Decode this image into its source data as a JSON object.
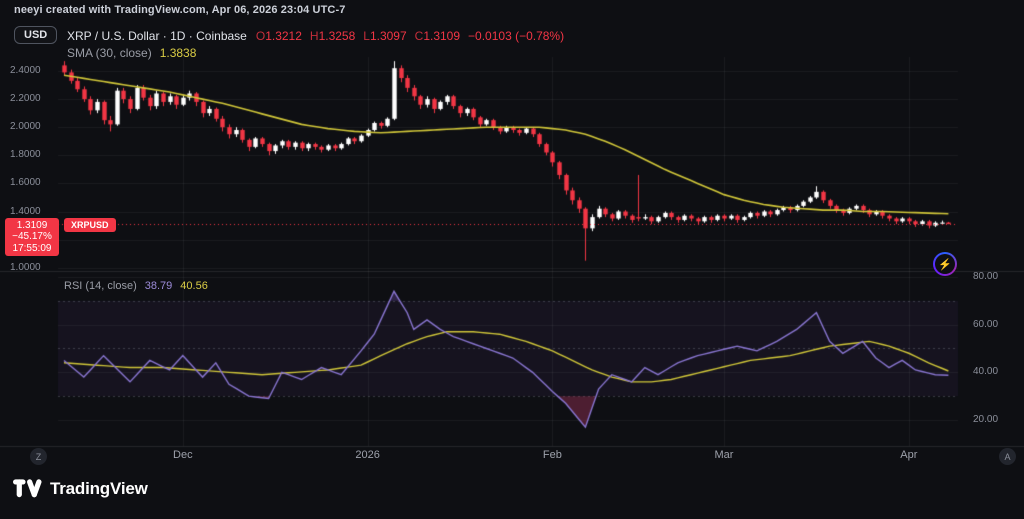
{
  "watermark": "neeyi created with TradingView.com, Apr 06, 2026 23:04 UTC-7",
  "toolbar": {
    "currency_button": "USD"
  },
  "legend": {
    "symbol_title": "XRP / U.S. Dollar · 1D · Coinbase",
    "o_label": "O",
    "o": "1.3212",
    "h_label": "H",
    "h": "1.3258",
    "l_label": "L",
    "l": "1.3097",
    "c_label": "C",
    "c": "1.3109",
    "change": "−0.0103 (−0.78%)",
    "sma_label": "SMA (30, close)",
    "sma_value": "1.3838"
  },
  "rsi_legend": {
    "label": "RSI (14, close)",
    "rsi_value": "38.79",
    "rsi_ma_value": "40.56"
  },
  "price_label": {
    "price": "1.3109",
    "change_pct": "−45.17%",
    "countdown": "17:55:09",
    "symbol_tag": "XRPUSD"
  },
  "axes": {
    "price_ticks": [
      {
        "v": 2.4,
        "label": "2.4000"
      },
      {
        "v": 2.2,
        "label": "2.2000"
      },
      {
        "v": 2.0,
        "label": "2.0000"
      },
      {
        "v": 1.8,
        "label": "1.8000"
      },
      {
        "v": 1.6,
        "label": "1.6000"
      },
      {
        "v": 1.4,
        "label": "1.4000"
      },
      {
        "v": 1.0,
        "label": "1.0000"
      }
    ],
    "rsi_ticks": [
      {
        "v": 80,
        "label": "80.00"
      },
      {
        "v": 60,
        "label": "60.00"
      },
      {
        "v": 40,
        "label": "40.00"
      },
      {
        "v": 20,
        "label": "20.00"
      }
    ],
    "time_ticks": [
      {
        "i": 18,
        "label": "Dec"
      },
      {
        "i": 46,
        "label": "2026"
      },
      {
        "i": 74,
        "label": "Feb"
      },
      {
        "i": 100,
        "label": "Mar"
      },
      {
        "i": 128,
        "label": "Apr"
      }
    ]
  },
  "buttons": {
    "zoom_letter": "Z",
    "auto_letter": "A"
  },
  "icons": {
    "flash": "⚡"
  },
  "logo_text": "TradingView",
  "colors": {
    "bg": "#0e0f13",
    "up": "#ffffff",
    "down": "#f23645",
    "sma": "#d1c739",
    "rsi": "#8a76d2",
    "rsi_ma": "#d1c739",
    "accent_red": "#f23645",
    "band_fill": "rgba(126,87,194,0.07)",
    "oversold_fill": "rgba(194,59,105,0.35)",
    "overbought_fill": "rgba(126,87,194,0.30)",
    "grid": "rgba(255,255,255,0.055)"
  },
  "chart_data": {
    "type": "candlestick",
    "symbol": "XRPUSD",
    "exchange": "Coinbase",
    "interval": "1D",
    "title": "XRP / U.S. Dollar",
    "price_range": [
      1.0,
      2.5
    ],
    "current_price": 1.3109,
    "indicators": [
      "SMA (30, close)",
      "RSI (14, close)"
    ],
    "rsi_bands": [
      70,
      50,
      30
    ],
    "rsi_grid": [
      80,
      60,
      40,
      20
    ],
    "candles": [
      [
        2.44,
        2.47,
        2.37,
        2.39
      ],
      [
        2.39,
        2.41,
        2.31,
        2.33
      ],
      [
        2.33,
        2.35,
        2.25,
        2.27
      ],
      [
        2.27,
        2.29,
        2.18,
        2.2
      ],
      [
        2.2,
        2.22,
        2.09,
        2.12
      ],
      [
        2.12,
        2.2,
        2.1,
        2.18
      ],
      [
        2.18,
        2.19,
        2.02,
        2.05
      ],
      [
        2.05,
        2.08,
        1.97,
        2.02
      ],
      [
        2.02,
        2.28,
        2.01,
        2.26
      ],
      [
        2.26,
        2.28,
        2.17,
        2.2
      ],
      [
        2.2,
        2.22,
        2.1,
        2.13
      ],
      [
        2.13,
        2.3,
        2.12,
        2.28
      ],
      [
        2.28,
        2.3,
        2.19,
        2.21
      ],
      [
        2.21,
        2.23,
        2.12,
        2.15
      ],
      [
        2.15,
        2.26,
        2.13,
        2.24
      ],
      [
        2.24,
        2.25,
        2.15,
        2.18
      ],
      [
        2.18,
        2.24,
        2.16,
        2.22
      ],
      [
        2.22,
        2.23,
        2.13,
        2.16
      ],
      [
        2.16,
        2.23,
        2.15,
        2.21
      ],
      [
        2.21,
        2.26,
        2.19,
        2.24
      ],
      [
        2.24,
        2.25,
        2.15,
        2.18
      ],
      [
        2.18,
        2.19,
        2.07,
        2.1
      ],
      [
        2.1,
        2.15,
        2.08,
        2.13
      ],
      [
        2.13,
        2.14,
        2.04,
        2.06
      ],
      [
        2.06,
        2.08,
        1.97,
        2.0
      ],
      [
        2.0,
        2.02,
        1.92,
        1.95
      ],
      [
        1.95,
        2.0,
        1.93,
        1.98
      ],
      [
        1.98,
        1.99,
        1.89,
        1.91
      ],
      [
        1.91,
        1.92,
        1.83,
        1.86
      ],
      [
        1.86,
        1.93,
        1.85,
        1.92
      ],
      [
        1.92,
        1.93,
        1.86,
        1.88
      ],
      [
        1.88,
        1.89,
        1.8,
        1.83
      ],
      [
        1.83,
        1.88,
        1.81,
        1.87
      ],
      [
        1.87,
        1.91,
        1.85,
        1.9
      ],
      [
        1.9,
        1.91,
        1.84,
        1.86
      ],
      [
        1.86,
        1.9,
        1.84,
        1.89
      ],
      [
        1.89,
        1.9,
        1.83,
        1.85
      ],
      [
        1.85,
        1.89,
        1.83,
        1.88
      ],
      [
        1.88,
        1.89,
        1.84,
        1.86
      ],
      [
        1.86,
        1.87,
        1.82,
        1.84
      ],
      [
        1.84,
        1.88,
        1.83,
        1.87
      ],
      [
        1.87,
        1.88,
        1.83,
        1.85
      ],
      [
        1.85,
        1.89,
        1.84,
        1.88
      ],
      [
        1.88,
        1.93,
        1.87,
        1.92
      ],
      [
        1.92,
        1.93,
        1.88,
        1.9
      ],
      [
        1.9,
        1.95,
        1.89,
        1.94
      ],
      [
        1.94,
        1.99,
        1.93,
        1.98
      ],
      [
        1.98,
        2.04,
        1.97,
        2.03
      ],
      [
        2.03,
        2.04,
        1.99,
        2.01
      ],
      [
        2.01,
        2.07,
        2.0,
        2.06
      ],
      [
        2.06,
        2.47,
        2.05,
        2.42
      ],
      [
        2.42,
        2.44,
        2.32,
        2.35
      ],
      [
        2.35,
        2.37,
        2.25,
        2.28
      ],
      [
        2.28,
        2.3,
        2.19,
        2.22
      ],
      [
        2.22,
        2.23,
        2.13,
        2.16
      ],
      [
        2.16,
        2.22,
        2.14,
        2.2
      ],
      [
        2.2,
        2.21,
        2.1,
        2.13
      ],
      [
        2.13,
        2.19,
        2.12,
        2.18
      ],
      [
        2.18,
        2.23,
        2.16,
        2.22
      ],
      [
        2.22,
        2.23,
        2.13,
        2.15
      ],
      [
        2.15,
        2.16,
        2.07,
        2.1
      ],
      [
        2.1,
        2.14,
        2.08,
        2.13
      ],
      [
        2.13,
        2.14,
        2.05,
        2.07
      ],
      [
        2.07,
        2.08,
        2.0,
        2.02
      ],
      [
        2.02,
        2.06,
        2.01,
        2.05
      ],
      [
        2.05,
        2.06,
        1.98,
        2.0
      ],
      [
        2.0,
        2.01,
        1.95,
        1.97
      ],
      [
        1.97,
        2.01,
        1.96,
        2.0
      ],
      [
        2.0,
        2.01,
        1.96,
        1.98
      ],
      [
        1.98,
        1.99,
        1.94,
        1.96
      ],
      [
        1.96,
        2.0,
        1.95,
        1.99
      ],
      [
        1.99,
        2.0,
        1.93,
        1.95
      ],
      [
        1.95,
        1.96,
        1.86,
        1.88
      ],
      [
        1.88,
        1.89,
        1.8,
        1.82
      ],
      [
        1.82,
        1.83,
        1.72,
        1.75
      ],
      [
        1.75,
        1.76,
        1.63,
        1.66
      ],
      [
        1.66,
        1.67,
        1.52,
        1.55
      ],
      [
        1.55,
        1.57,
        1.45,
        1.48
      ],
      [
        1.48,
        1.5,
        1.39,
        1.42
      ],
      [
        1.42,
        1.43,
        1.05,
        1.28
      ],
      [
        1.28,
        1.38,
        1.26,
        1.36
      ],
      [
        1.36,
        1.44,
        1.35,
        1.42
      ],
      [
        1.42,
        1.43,
        1.36,
        1.38
      ],
      [
        1.38,
        1.39,
        1.33,
        1.35
      ],
      [
        1.35,
        1.41,
        1.34,
        1.4
      ],
      [
        1.4,
        1.41,
        1.35,
        1.37
      ],
      [
        1.37,
        1.38,
        1.32,
        1.34
      ],
      [
        1.36,
        1.66,
        1.33,
        1.35
      ],
      [
        1.35,
        1.38,
        1.34,
        1.36
      ],
      [
        1.36,
        1.37,
        1.31,
        1.33
      ],
      [
        1.33,
        1.37,
        1.32,
        1.36
      ],
      [
        1.36,
        1.4,
        1.35,
        1.39
      ],
      [
        1.39,
        1.4,
        1.34,
        1.36
      ],
      [
        1.36,
        1.37,
        1.32,
        1.34
      ],
      [
        1.34,
        1.38,
        1.33,
        1.37
      ],
      [
        1.37,
        1.38,
        1.33,
        1.35
      ],
      [
        1.35,
        1.36,
        1.31,
        1.33
      ],
      [
        1.33,
        1.37,
        1.32,
        1.36
      ],
      [
        1.36,
        1.37,
        1.32,
        1.34
      ],
      [
        1.34,
        1.38,
        1.33,
        1.37
      ],
      [
        1.37,
        1.38,
        1.33,
        1.35
      ],
      [
        1.35,
        1.38,
        1.34,
        1.37
      ],
      [
        1.37,
        1.38,
        1.32,
        1.34
      ],
      [
        1.34,
        1.37,
        1.33,
        1.36
      ],
      [
        1.36,
        1.4,
        1.35,
        1.39
      ],
      [
        1.39,
        1.4,
        1.35,
        1.37
      ],
      [
        1.37,
        1.41,
        1.36,
        1.4
      ],
      [
        1.4,
        1.41,
        1.36,
        1.38
      ],
      [
        1.38,
        1.42,
        1.37,
        1.41
      ],
      [
        1.41,
        1.44,
        1.4,
        1.43
      ],
      [
        1.43,
        1.44,
        1.39,
        1.41
      ],
      [
        1.41,
        1.45,
        1.4,
        1.44
      ],
      [
        1.44,
        1.48,
        1.43,
        1.47
      ],
      [
        1.47,
        1.51,
        1.46,
        1.5
      ],
      [
        1.5,
        1.58,
        1.49,
        1.54
      ],
      [
        1.54,
        1.55,
        1.46,
        1.48
      ],
      [
        1.48,
        1.49,
        1.42,
        1.44
      ],
      [
        1.44,
        1.45,
        1.39,
        1.41
      ],
      [
        1.41,
        1.42,
        1.37,
        1.39
      ],
      [
        1.39,
        1.43,
        1.38,
        1.42
      ],
      [
        1.42,
        1.45,
        1.41,
        1.44
      ],
      [
        1.44,
        1.45,
        1.39,
        1.41
      ],
      [
        1.41,
        1.42,
        1.36,
        1.38
      ],
      [
        1.38,
        1.41,
        1.37,
        1.4
      ],
      [
        1.4,
        1.41,
        1.35,
        1.37
      ],
      [
        1.37,
        1.38,
        1.33,
        1.35
      ],
      [
        1.35,
        1.36,
        1.31,
        1.33
      ],
      [
        1.33,
        1.36,
        1.32,
        1.35
      ],
      [
        1.35,
        1.36,
        1.31,
        1.33
      ],
      [
        1.33,
        1.34,
        1.29,
        1.31
      ],
      [
        1.31,
        1.34,
        1.3,
        1.33
      ],
      [
        1.33,
        1.34,
        1.28,
        1.3
      ],
      [
        1.3,
        1.33,
        1.29,
        1.32
      ],
      [
        1.32,
        1.335,
        1.315,
        1.3212
      ],
      [
        1.3212,
        1.3258,
        1.3097,
        1.3109
      ]
    ],
    "sma30": [
      [
        0,
        2.37
      ],
      [
        4,
        2.34
      ],
      [
        8,
        2.31
      ],
      [
        12,
        2.28
      ],
      [
        16,
        2.25
      ],
      [
        20,
        2.21
      ],
      [
        24,
        2.17
      ],
      [
        28,
        2.12
      ],
      [
        32,
        2.07
      ],
      [
        36,
        2.02
      ],
      [
        40,
        1.99
      ],
      [
        44,
        1.97
      ],
      [
        48,
        1.96
      ],
      [
        52,
        1.97
      ],
      [
        56,
        1.98
      ],
      [
        60,
        1.99
      ],
      [
        64,
        2.0
      ],
      [
        68,
        2.0
      ],
      [
        72,
        2.0
      ],
      [
        76,
        1.98
      ],
      [
        79,
        1.95
      ],
      [
        82,
        1.9
      ],
      [
        85,
        1.84
      ],
      [
        88,
        1.77
      ],
      [
        91,
        1.7
      ],
      [
        94,
        1.64
      ],
      [
        97,
        1.58
      ],
      [
        100,
        1.52
      ],
      [
        103,
        1.48
      ],
      [
        106,
        1.45
      ],
      [
        109,
        1.43
      ],
      [
        112,
        1.42
      ],
      [
        115,
        1.41
      ],
      [
        118,
        1.41
      ],
      [
        121,
        1.4
      ],
      [
        124,
        1.4
      ],
      [
        127,
        1.395
      ],
      [
        130,
        1.39
      ],
      [
        134,
        1.3838
      ]
    ],
    "rsi": [
      [
        0,
        45
      ],
      [
        3,
        38
      ],
      [
        6,
        47
      ],
      [
        10,
        36
      ],
      [
        13,
        45
      ],
      [
        16,
        41
      ],
      [
        18,
        47
      ],
      [
        21,
        38
      ],
      [
        23,
        44
      ],
      [
        25,
        35
      ],
      [
        28,
        30
      ],
      [
        31,
        29
      ],
      [
        33,
        40
      ],
      [
        36,
        37
      ],
      [
        39,
        42
      ],
      [
        42,
        39
      ],
      [
        45,
        49
      ],
      [
        47,
        56
      ],
      [
        50,
        74
      ],
      [
        52,
        65
      ],
      [
        53,
        58
      ],
      [
        55,
        62
      ],
      [
        57,
        58
      ],
      [
        59,
        55
      ],
      [
        62,
        52
      ],
      [
        65,
        49
      ],
      [
        68,
        46
      ],
      [
        71,
        40
      ],
      [
        74,
        32
      ],
      [
        76,
        27
      ],
      [
        79,
        17
      ],
      [
        81,
        33
      ],
      [
        83,
        39
      ],
      [
        86,
        36
      ],
      [
        88,
        42
      ],
      [
        90,
        39
      ],
      [
        93,
        44
      ],
      [
        96,
        47
      ],
      [
        99,
        49
      ],
      [
        102,
        51
      ],
      [
        105,
        49
      ],
      [
        108,
        53
      ],
      [
        111,
        58
      ],
      [
        114,
        65
      ],
      [
        116,
        53
      ],
      [
        118,
        48
      ],
      [
        121,
        53
      ],
      [
        123,
        46
      ],
      [
        125,
        42
      ],
      [
        127,
        45
      ],
      [
        129,
        41
      ],
      [
        132,
        39
      ],
      [
        134,
        38.79
      ]
    ],
    "rsi_ma": [
      [
        0,
        44
      ],
      [
        5,
        43
      ],
      [
        10,
        42
      ],
      [
        15,
        42
      ],
      [
        20,
        41
      ],
      [
        25,
        40
      ],
      [
        30,
        39
      ],
      [
        35,
        40
      ],
      [
        40,
        41
      ],
      [
        45,
        43
      ],
      [
        48,
        47
      ],
      [
        52,
        52
      ],
      [
        55,
        55
      ],
      [
        58,
        57
      ],
      [
        62,
        57
      ],
      [
        66,
        56
      ],
      [
        70,
        53
      ],
      [
        74,
        49
      ],
      [
        77,
        45
      ],
      [
        80,
        41
      ],
      [
        83,
        38
      ],
      [
        86,
        36
      ],
      [
        89,
        36
      ],
      [
        92,
        37
      ],
      [
        95,
        39
      ],
      [
        98,
        41
      ],
      [
        101,
        43
      ],
      [
        104,
        45
      ],
      [
        107,
        46
      ],
      [
        110,
        47
      ],
      [
        113,
        49
      ],
      [
        116,
        51
      ],
      [
        119,
        52
      ],
      [
        122,
        53
      ],
      [
        125,
        51
      ],
      [
        128,
        48
      ],
      [
        131,
        44
      ],
      [
        134,
        40.56
      ]
    ]
  }
}
